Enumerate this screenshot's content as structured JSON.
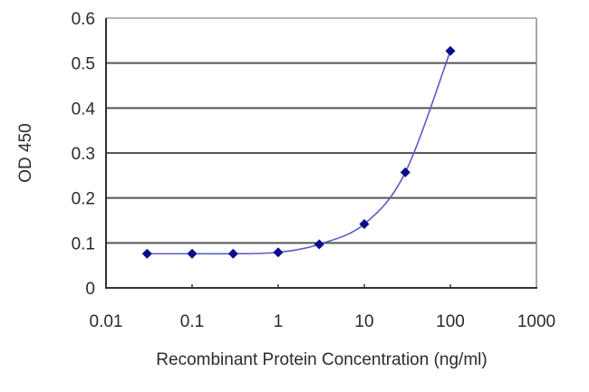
{
  "chart_data": {
    "type": "line",
    "title": "",
    "xlabel": "Recombinant Protein Concentration (ng/ml)",
    "ylabel": "OD 450",
    "xscale": "log",
    "xlim": [
      0.01,
      1000
    ],
    "ylim": [
      0,
      0.6
    ],
    "x_ticks": [
      "0.01",
      "0.1",
      "1",
      "10",
      "100",
      "1000"
    ],
    "y_ticks": [
      "0",
      "0.1",
      "0.2",
      "0.3",
      "0.4",
      "0.5",
      "0.6"
    ],
    "grid": {
      "horizontal": true,
      "vertical": false
    },
    "legend": null,
    "series": [
      {
        "name": "OD 450",
        "color": "#0a0a8c",
        "line_color": "#5050c8",
        "marker": "diamond",
        "x": [
          0.03,
          0.1,
          0.3,
          1,
          3,
          10,
          30,
          100
        ],
        "values": [
          0.076,
          0.076,
          0.076,
          0.079,
          0.097,
          0.142,
          0.257,
          0.527
        ]
      }
    ]
  },
  "colors": {
    "axis": "#333333",
    "grid": "#555555",
    "marker": "#0a0a8c",
    "curve": "#5a5ac8"
  }
}
